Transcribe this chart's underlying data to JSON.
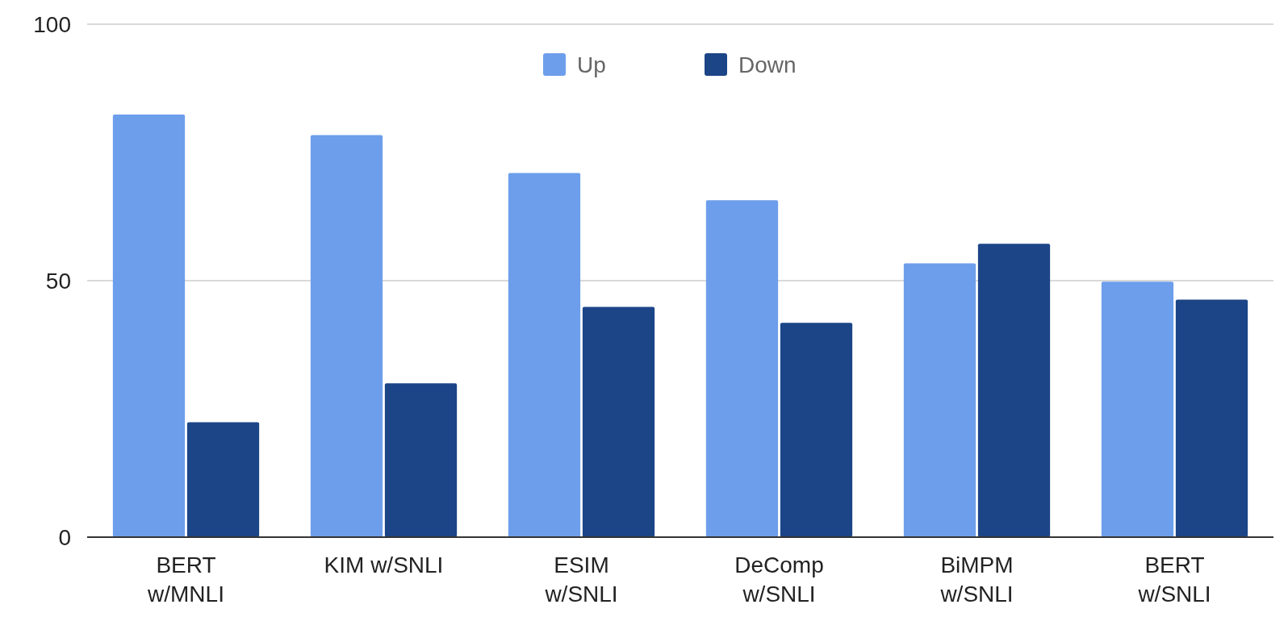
{
  "chart_data": {
    "type": "bar",
    "categories": [
      "BERT w/MNLI",
      "KIM w/SNLI",
      "ESIM w/SNLI",
      "DeComp w/SNLI",
      "BiMPM w/SNLI",
      "BERT w/SNLI"
    ],
    "series": [
      {
        "name": "Up",
        "color": "#6d9eeb",
        "values": [
          82.4,
          78.4,
          71.0,
          65.7,
          53.4,
          49.8
        ]
      },
      {
        "name": "Down",
        "color": "#1c4587",
        "values": [
          22.4,
          30.0,
          44.9,
          41.8,
          57.2,
          46.3
        ]
      }
    ],
    "ylim": [
      0,
      100
    ],
    "yticks": [
      0,
      50,
      100
    ],
    "grid": "y",
    "legend": "top"
  }
}
